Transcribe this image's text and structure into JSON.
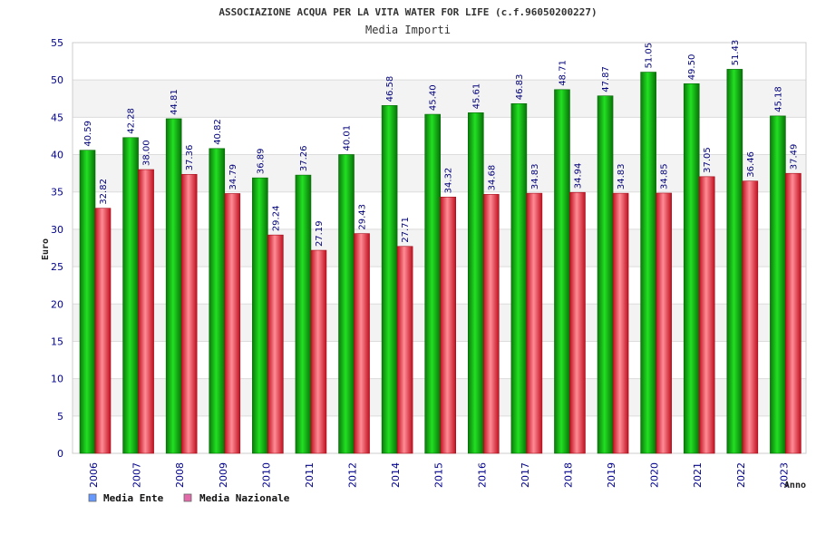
{
  "chart_data": {
    "type": "bar",
    "title": "ASSOCIAZIONE ACQUA PER LA VITA WATER FOR LIFE (c.f.96050200227)",
    "subtitle": "Media Importi",
    "xlabel": "Anno",
    "ylabel": "Euro",
    "ylim": [
      0,
      55
    ],
    "yticks": [
      0,
      5,
      10,
      15,
      20,
      25,
      30,
      35,
      40,
      45,
      50,
      55
    ],
    "grid": true,
    "legend_position": "bottom-left",
    "categories": [
      "2006",
      "2007",
      "2008",
      "2009",
      "2010",
      "2011",
      "2012",
      "2014",
      "2015",
      "2016",
      "2017",
      "2018",
      "2019",
      "2020",
      "2021",
      "2022",
      "2023"
    ],
    "series": [
      {
        "name": "Media Ente",
        "color": "#0aa60a",
        "legend_color": "#6699ff",
        "values": [
          40.59,
          42.28,
          44.81,
          40.82,
          36.89,
          37.26,
          40.01,
          46.58,
          45.4,
          45.61,
          46.83,
          48.71,
          47.87,
          51.05,
          49.5,
          51.43,
          45.18
        ],
        "labels": [
          "40.59",
          "42.28",
          "44.81",
          "40.82",
          "36.89",
          "37.26",
          "40.01",
          "46.58",
          "45.40",
          "45.61",
          "46.83",
          "48.71",
          "47.87",
          "51.05",
          "49.50",
          "51.43",
          "45.18"
        ]
      },
      {
        "name": "Media Nazionale",
        "color": "#e8192c",
        "legend_color": "#e26aa8",
        "values": [
          32.82,
          38.0,
          37.36,
          34.79,
          29.24,
          27.19,
          29.43,
          27.71,
          34.32,
          34.68,
          34.83,
          34.94,
          34.83,
          34.85,
          37.05,
          36.46,
          37.49
        ],
        "labels": [
          "32.82",
          "38.00",
          "37.36",
          "34.79",
          "29.24",
          "27.19",
          "29.43",
          "27.71",
          "34.32",
          "34.68",
          "34.83",
          "34.94",
          "34.83",
          "34.85",
          "37.05",
          "36.46",
          "37.49"
        ]
      }
    ]
  }
}
